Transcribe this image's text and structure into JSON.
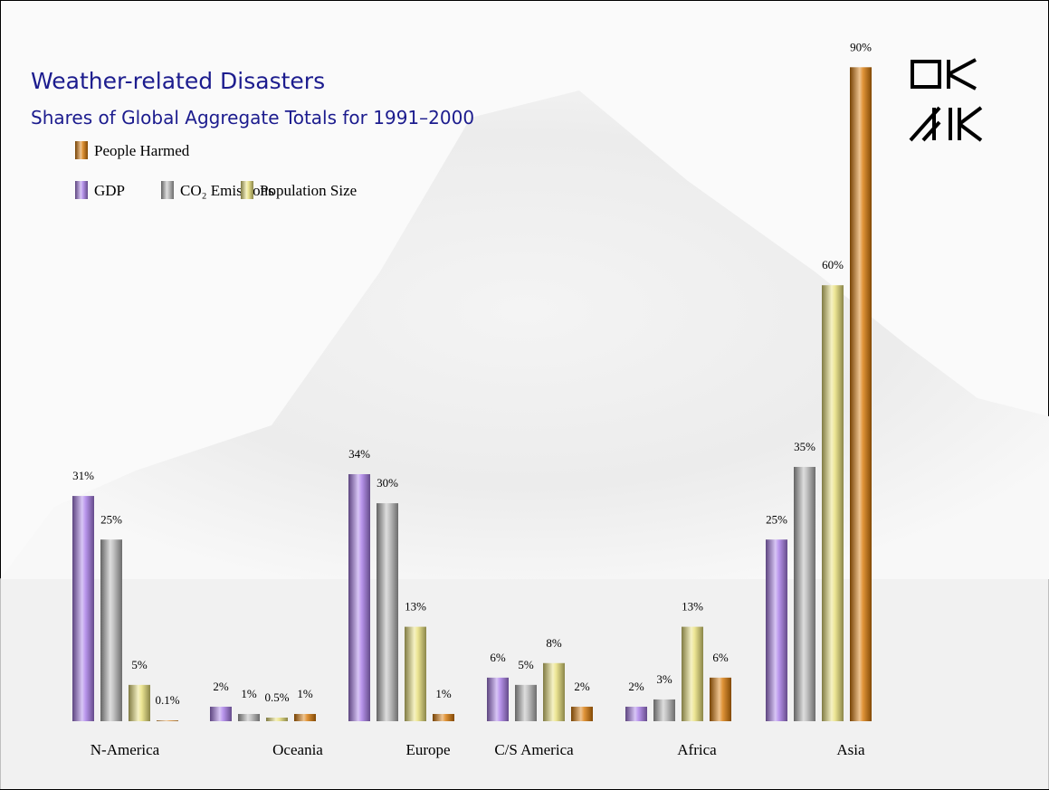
{
  "chart_data": {
    "type": "bar",
    "title": "Weather-related Disasters",
    "subtitle": "Shares of Global Aggregate Totals for 1991–2000",
    "categories": [
      "N-America",
      "Oceania",
      "Europe",
      "C/S America",
      "Africa",
      "Asia"
    ],
    "series": [
      {
        "name": "GDP",
        "color": "#a97de8",
        "values": [
          31,
          2,
          34,
          6,
          2,
          25
        ],
        "value_labels": [
          "31%",
          "2%",
          "34%",
          "6%",
          "2%",
          "25%"
        ]
      },
      {
        "name": "CO₂ Emissions",
        "color": "#b4b4b4",
        "values": [
          25,
          1,
          30,
          5,
          3,
          35
        ],
        "value_labels": [
          "25%",
          "1%",
          "30%",
          "5%",
          "3%",
          "35%"
        ]
      },
      {
        "name": "Population Size",
        "color": "#e8e07a",
        "values": [
          5,
          0.5,
          13,
          8,
          13,
          60
        ],
        "value_labels": [
          "5%",
          "0.5%",
          "13%",
          "8%",
          "13%",
          "60%"
        ]
      },
      {
        "name": "People Harmed",
        "color": "#d97a08",
        "values": [
          0.1,
          1,
          1,
          2,
          6,
          90
        ],
        "value_labels": [
          "0.1%",
          "1%",
          "1%",
          "2%",
          "6%",
          "90%"
        ]
      }
    ]
  }
}
